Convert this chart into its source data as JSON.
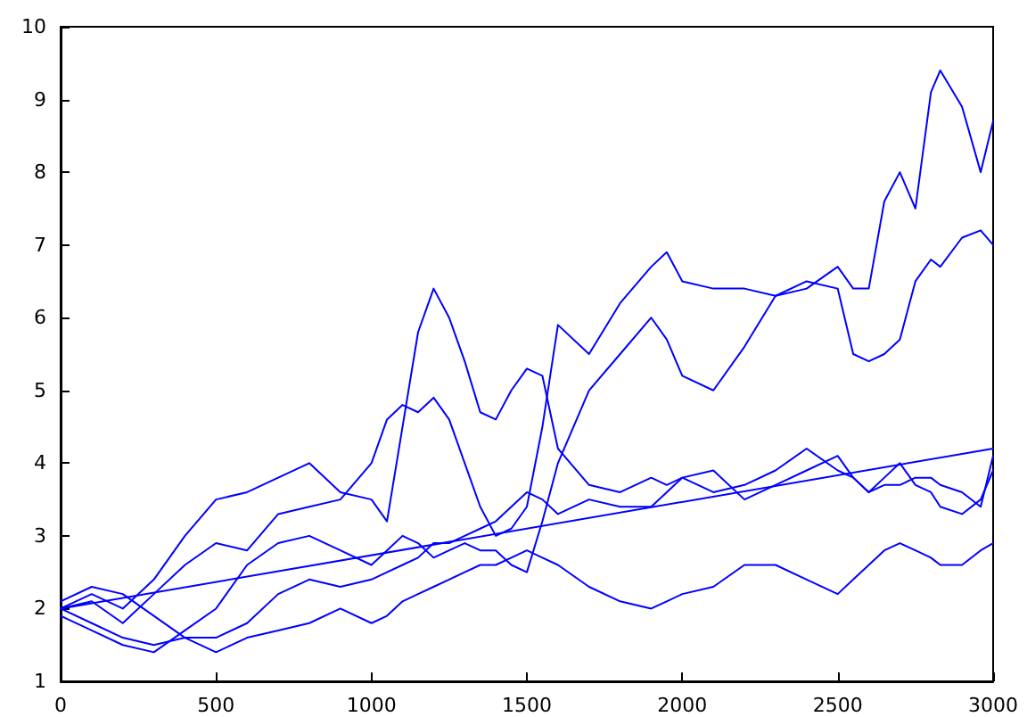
{
  "chart_data": {
    "type": "line",
    "marker": "none",
    "line_style": "solid",
    "xlim": [
      0,
      3000
    ],
    "xticks": [
      0,
      500,
      1000,
      1500,
      2000,
      2500,
      3000
    ],
    "ylim": [
      1,
      10
    ],
    "yticks": [
      1,
      2,
      3,
      4,
      5,
      6,
      7,
      8,
      9,
      10
    ],
    "x": [
      0,
      100,
      200,
      300,
      400,
      500,
      600,
      700,
      800,
      900,
      1000,
      1050,
      1100,
      1150,
      1200,
      1250,
      1300,
      1350,
      1400,
      1450,
      1500,
      1550,
      1600,
      1700,
      1800,
      1900,
      1950,
      2000,
      2100,
      2200,
      2300,
      2400,
      2500,
      2550,
      2600,
      2650,
      2700,
      2750,
      2800,
      2830,
      2900,
      2960,
      3000
    ],
    "series": [
      {
        "color": "#0000ff",
        "values": [
          2.0,
          2.2,
          2.0,
          2.4,
          3.0,
          3.5,
          3.6,
          3.8,
          4.0,
          3.6,
          3.5,
          3.2,
          4.5,
          5.8,
          6.4,
          6.0,
          5.4,
          4.7,
          4.6,
          5.0,
          5.3,
          5.2,
          4.2,
          3.7,
          3.6,
          3.8,
          3.7,
          3.8,
          3.6,
          3.7,
          3.9,
          4.2,
          3.9,
          3.8,
          3.6,
          3.7,
          3.7,
          3.8,
          3.8,
          3.7,
          3.6,
          3.4,
          4.1
        ]
      },
      {
        "color": "#0000ff",
        "values": [
          2.0,
          2.1,
          1.8,
          2.2,
          2.6,
          2.9,
          2.8,
          3.3,
          3.4,
          3.5,
          4.0,
          4.6,
          4.8,
          4.7,
          4.9,
          4.6,
          4.0,
          3.4,
          3.0,
          3.1,
          3.4,
          4.5,
          5.9,
          5.5,
          6.2,
          6.7,
          6.9,
          6.5,
          6.4,
          6.4,
          6.3,
          6.4,
          6.7,
          6.4,
          6.4,
          7.6,
          8.0,
          7.5,
          9.1,
          9.4,
          8.9,
          8.0,
          8.7
        ]
      },
      {
        "color": "#0000ff",
        "values": [
          1.9,
          1.7,
          1.5,
          1.4,
          1.7,
          2.0,
          2.6,
          2.9,
          3.0,
          2.8,
          2.6,
          2.8,
          3.0,
          2.9,
          2.7,
          2.8,
          2.9,
          2.8,
          2.8,
          2.6,
          2.5,
          3.2,
          4.0,
          5.0,
          5.5,
          6.0,
          5.7,
          5.2,
          5.0,
          5.6,
          6.3,
          6.5,
          6.4,
          5.5,
          5.4,
          5.5,
          5.7,
          6.5,
          6.8,
          6.7,
          7.1,
          7.2,
          7.0
        ]
      },
      {
        "color": "#0000ff",
        "values": [
          2.0,
          1.8,
          1.6,
          1.5,
          1.6,
          1.4,
          1.6,
          1.7,
          1.8,
          2.0,
          1.8,
          1.9,
          2.1,
          2.2,
          2.3,
          2.4,
          2.5,
          2.6,
          2.6,
          2.7,
          2.8,
          2.7,
          2.6,
          2.3,
          2.1,
          2.0,
          2.1,
          2.2,
          2.3,
          2.6,
          2.6,
          2.4,
          2.2,
          2.4,
          2.6,
          2.8,
          2.9,
          2.8,
          2.7,
          2.6,
          2.6,
          2.8,
          2.9
        ]
      },
      {
        "color": "#0000ff",
        "values": [
          2.1,
          2.3,
          2.2,
          1.9,
          1.6,
          1.6,
          1.8,
          2.2,
          2.4,
          2.3,
          2.4,
          2.5,
          2.6,
          2.7,
          2.9,
          2.9,
          3.0,
          3.1,
          3.2,
          3.4,
          3.6,
          3.5,
          3.3,
          3.5,
          3.4,
          3.4,
          3.6,
          3.8,
          3.9,
          3.5,
          3.7,
          3.9,
          4.1,
          3.8,
          3.6,
          3.8,
          4.0,
          3.7,
          3.6,
          3.4,
          3.3,
          3.5,
          3.9
        ]
      },
      {
        "color": "#0000ff",
        "x": [
          0,
          3000
        ],
        "values": [
          2.0,
          4.2
        ]
      }
    ]
  }
}
